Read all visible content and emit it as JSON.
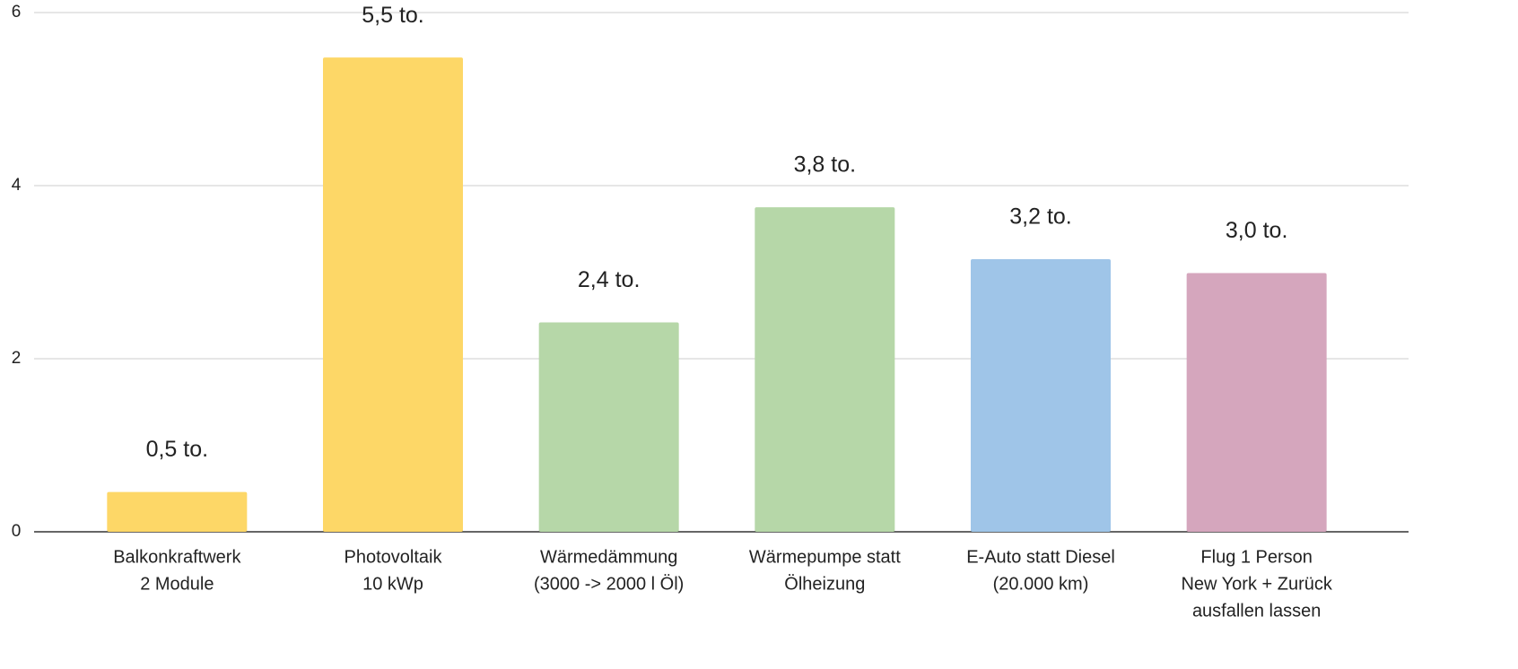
{
  "chart_data": {
    "type": "bar",
    "categories": [
      [
        "Balkonkraftwerk",
        "2 Module"
      ],
      [
        "Photovoltaik",
        "10 kWp"
      ],
      [
        "Wärmedämmung",
        "(3000 -> 2000 l Öl)"
      ],
      [
        "Wärmepumpe statt",
        "Ölheizung"
      ],
      [
        "E-Auto statt Diesel",
        "(20.000 km)"
      ],
      [
        "Flug 1 Person",
        "New York + Zurück",
        "ausfallen lassen"
      ]
    ],
    "values": [
      0.46,
      5.48,
      2.42,
      3.75,
      3.15,
      2.99
    ],
    "value_labels": [
      "0,5 to.",
      "5,5 to.",
      "2,4 to.",
      "3,8 to.",
      "3,2 to.",
      "3,0 to."
    ],
    "colors": [
      "#fdd767",
      "#fdd767",
      "#b6d7a8",
      "#b6d7a8",
      "#9fc5e8",
      "#d5a6bd"
    ],
    "ylim": [
      0,
      6
    ],
    "yticks": [
      0,
      2,
      4,
      6
    ],
    "grid": true
  }
}
